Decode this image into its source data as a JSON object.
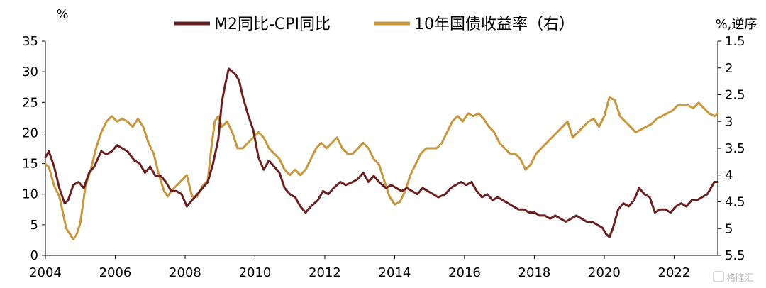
{
  "chart_data": {
    "type": "line",
    "left_unit": "%",
    "right_unit": "%,逆序",
    "x_ticks": [
      "2004",
      "2006",
      "2008",
      "2010",
      "2012",
      "2014",
      "2016",
      "2018",
      "2020",
      "2022"
    ],
    "y_left_ticks": [
      "35",
      "30",
      "25",
      "20",
      "15",
      "10",
      "5",
      "0"
    ],
    "y_right_ticks": [
      "1.5",
      "2",
      "2.5",
      "3",
      "3.5",
      "4",
      "4.5",
      "5",
      "5.5"
    ],
    "xlim": [
      2004,
      2023.25
    ],
    "ylim_left": [
      0,
      35
    ],
    "ylim_right_inverted": [
      1.5,
      5.5
    ],
    "legend_position": "top-center",
    "grid": false,
    "series": [
      {
        "name": "M2同比-CPI同比",
        "axis": "left",
        "color": "#6B1F1F",
        "x": [
          2004.0,
          2004.1,
          2004.25,
          2004.4,
          2004.55,
          2004.65,
          2004.8,
          2004.95,
          2005.1,
          2005.25,
          2005.4,
          2005.6,
          2005.75,
          2005.9,
          2006.05,
          2006.2,
          2006.35,
          2006.55,
          2006.7,
          2006.85,
          2007.0,
          2007.15,
          2007.3,
          2007.45,
          2007.6,
          2007.75,
          2007.9,
          2008.05,
          2008.2,
          2008.35,
          2008.5,
          2008.65,
          2008.8,
          2008.95,
          2009.05,
          2009.15,
          2009.25,
          2009.35,
          2009.45,
          2009.55,
          2009.65,
          2009.8,
          2009.95,
          2010.1,
          2010.25,
          2010.4,
          2010.55,
          2010.7,
          2010.85,
          2011.0,
          2011.15,
          2011.3,
          2011.45,
          2011.6,
          2011.8,
          2011.95,
          2012.1,
          2012.25,
          2012.45,
          2012.6,
          2012.8,
          2012.95,
          2013.1,
          2013.25,
          2013.4,
          2013.55,
          2013.75,
          2013.9,
          2014.05,
          2014.2,
          2014.35,
          2014.5,
          2014.65,
          2014.8,
          2014.95,
          2015.1,
          2015.25,
          2015.45,
          2015.6,
          2015.75,
          2015.9,
          2016.05,
          2016.2,
          2016.35,
          2016.5,
          2016.65,
          2016.8,
          2016.95,
          2017.1,
          2017.25,
          2017.4,
          2017.55,
          2017.7,
          2017.85,
          2018.0,
          2018.15,
          2018.3,
          2018.45,
          2018.6,
          2018.75,
          2018.9,
          2019.05,
          2019.2,
          2019.35,
          2019.5,
          2019.65,
          2019.8,
          2019.95,
          2020.05,
          2020.15,
          2020.25,
          2020.4,
          2020.55,
          2020.7,
          2020.85,
          2021.0,
          2021.15,
          2021.3,
          2021.45,
          2021.6,
          2021.75,
          2021.9,
          2022.05,
          2022.2,
          2022.35,
          2022.5,
          2022.65,
          2022.8,
          2022.95,
          2023.05,
          2023.15,
          2023.25
        ],
        "values": [
          16.0,
          17.0,
          14.5,
          11.0,
          8.5,
          9.0,
          11.5,
          12.0,
          11.0,
          13.5,
          14.5,
          17.0,
          16.5,
          17.0,
          18.0,
          17.5,
          17.0,
          15.5,
          15.0,
          13.5,
          14.5,
          13.0,
          13.0,
          12.0,
          10.5,
          10.5,
          10.0,
          8.0,
          9.0,
          10.0,
          11.0,
          12.0,
          15.0,
          19.0,
          25.0,
          28.0,
          30.5,
          30.0,
          29.5,
          28.5,
          26.0,
          23.0,
          20.5,
          16.0,
          14.0,
          15.5,
          14.5,
          13.5,
          11.0,
          10.0,
          9.5,
          8.0,
          7.0,
          8.0,
          9.0,
          10.5,
          10.0,
          11.0,
          12.0,
          11.5,
          12.0,
          12.5,
          13.5,
          12.0,
          13.0,
          12.0,
          11.0,
          11.5,
          11.0,
          10.5,
          11.0,
          10.5,
          10.0,
          11.0,
          10.5,
          10.0,
          9.5,
          10.0,
          11.0,
          11.5,
          12.0,
          11.5,
          12.0,
          10.5,
          9.5,
          10.0,
          9.0,
          9.5,
          9.0,
          8.5,
          8.0,
          7.5,
          7.5,
          7.0,
          7.0,
          6.5,
          6.5,
          6.0,
          6.5,
          6.0,
          5.5,
          6.0,
          6.5,
          6.0,
          5.5,
          5.5,
          5.0,
          4.5,
          3.5,
          3.0,
          4.5,
          7.5,
          8.5,
          8.0,
          9.0,
          11.0,
          10.0,
          9.5,
          7.0,
          7.5,
          7.5,
          7.0,
          8.0,
          8.5,
          8.0,
          9.0,
          9.0,
          9.5,
          10.0,
          11.0,
          12.0,
          12.0
        ]
      },
      {
        "name": "10年国债收益率（右）",
        "axis": "right",
        "color": "#C8963C",
        "x": [
          2004.0,
          2004.1,
          2004.25,
          2004.4,
          2004.5,
          2004.6,
          2004.7,
          2004.8,
          2004.9,
          2005.0,
          2005.15,
          2005.3,
          2005.45,
          2005.6,
          2005.75,
          2005.9,
          2006.05,
          2006.2,
          2006.35,
          2006.5,
          2006.65,
          2006.8,
          2006.95,
          2007.1,
          2007.25,
          2007.4,
          2007.5,
          2007.6,
          2007.75,
          2007.9,
          2008.05,
          2008.2,
          2008.35,
          2008.5,
          2008.65,
          2008.75,
          2008.85,
          2008.95,
          2009.05,
          2009.2,
          2009.35,
          2009.5,
          2009.65,
          2009.8,
          2009.95,
          2010.1,
          2010.25,
          2010.4,
          2010.55,
          2010.7,
          2010.85,
          2011.0,
          2011.15,
          2011.3,
          2011.45,
          2011.6,
          2011.75,
          2011.9,
          2012.05,
          2012.2,
          2012.35,
          2012.5,
          2012.65,
          2012.8,
          2012.95,
          2013.1,
          2013.25,
          2013.4,
          2013.55,
          2013.7,
          2013.85,
          2014.0,
          2014.15,
          2014.3,
          2014.45,
          2014.6,
          2014.75,
          2014.9,
          2015.05,
          2015.2,
          2015.35,
          2015.5,
          2015.65,
          2015.8,
          2015.95,
          2016.1,
          2016.25,
          2016.4,
          2016.55,
          2016.7,
          2016.85,
          2017.0,
          2017.15,
          2017.3,
          2017.45,
          2017.6,
          2017.75,
          2017.9,
          2018.05,
          2018.2,
          2018.35,
          2018.5,
          2018.65,
          2018.8,
          2018.95,
          2019.1,
          2019.25,
          2019.4,
          2019.55,
          2019.7,
          2019.85,
          2020.0,
          2020.15,
          2020.3,
          2020.45,
          2020.6,
          2020.75,
          2020.9,
          2021.05,
          2021.2,
          2021.35,
          2021.5,
          2021.65,
          2021.8,
          2021.95,
          2022.1,
          2022.25,
          2022.4,
          2022.55,
          2022.7,
          2022.85,
          2023.0,
          2023.15,
          2023.25
        ],
        "values": [
          3.8,
          3.85,
          4.2,
          4.4,
          4.7,
          5.0,
          5.1,
          5.2,
          5.1,
          4.9,
          4.2,
          3.9,
          3.5,
          3.2,
          3.0,
          2.9,
          3.0,
          2.95,
          3.0,
          3.1,
          2.95,
          3.1,
          3.4,
          3.6,
          4.0,
          4.3,
          4.4,
          4.3,
          4.2,
          4.1,
          4.0,
          4.4,
          4.4,
          4.2,
          4.1,
          3.5,
          3.0,
          2.9,
          3.1,
          3.0,
          3.2,
          3.5,
          3.5,
          3.4,
          3.3,
          3.2,
          3.3,
          3.5,
          3.6,
          3.7,
          3.9,
          4.0,
          3.9,
          4.0,
          3.9,
          3.7,
          3.5,
          3.4,
          3.5,
          3.4,
          3.3,
          3.5,
          3.6,
          3.6,
          3.5,
          3.4,
          3.5,
          3.7,
          3.8,
          4.1,
          4.4,
          4.55,
          4.5,
          4.3,
          4.0,
          3.8,
          3.6,
          3.5,
          3.5,
          3.5,
          3.4,
          3.2,
          3.0,
          2.9,
          3.0,
          2.85,
          2.9,
          2.85,
          2.95,
          3.1,
          3.2,
          3.4,
          3.5,
          3.6,
          3.6,
          3.7,
          3.9,
          3.8,
          3.6,
          3.5,
          3.4,
          3.3,
          3.2,
          3.1,
          3.0,
          3.3,
          3.2,
          3.1,
          3.0,
          2.95,
          3.1,
          2.9,
          2.55,
          2.6,
          2.9,
          3.0,
          3.1,
          3.2,
          3.15,
          3.1,
          3.05,
          2.95,
          2.9,
          2.85,
          2.8,
          2.7,
          2.7,
          2.7,
          2.75,
          2.65,
          2.75,
          2.85,
          2.9,
          2.85
        ]
      }
    ]
  },
  "watermark": "格隆汇"
}
